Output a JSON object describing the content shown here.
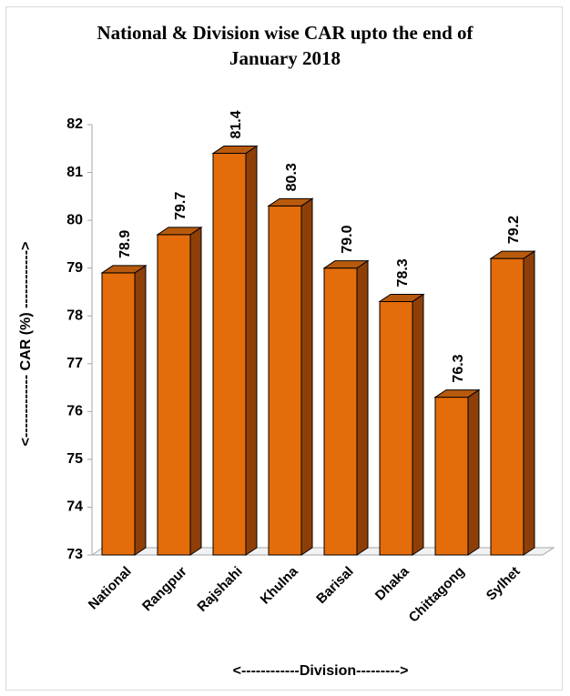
{
  "chart_data": {
    "type": "bar",
    "title_lines": [
      "National & Division wise CAR upto the end of",
      "January 2018"
    ],
    "categories": [
      "National",
      "Rangpur",
      "Rajshahi",
      "Khulna",
      "Barisal",
      "Dhaka",
      "Chittagong",
      "Sylhet"
    ],
    "values": [
      78.9,
      79.7,
      81.4,
      80.3,
      79.0,
      78.3,
      76.3,
      79.2
    ],
    "data_labels": [
      "78.9",
      "79.7",
      "81.4",
      "80.3",
      "79.0",
      "78.3",
      "76.3",
      "79.2"
    ],
    "xlabel": "<------------Division--------->",
    "ylabel": "<------------- CAR (%) ------------>",
    "ylim": [
      73,
      82
    ],
    "yticks": [
      73,
      74,
      75,
      76,
      77,
      78,
      79,
      80,
      81,
      82
    ],
    "bar_style": "3d-column",
    "grid": false,
    "legend": "none",
    "colors": {
      "bar_front": "#e46c0a",
      "bar_side": "#8e3f07",
      "bar_top": "#b85a0d",
      "bar_edge": "#000000"
    }
  }
}
